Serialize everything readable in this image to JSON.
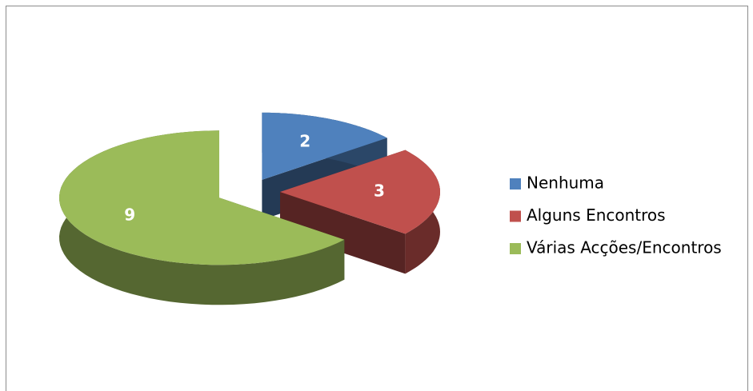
{
  "chart_data": {
    "type": "pie3d",
    "categories": [
      "Nenhuma",
      "Alguns Encontros",
      "Várias Acções/Encontros"
    ],
    "values": [
      2,
      3,
      9
    ],
    "colors": [
      "#4f81bd",
      "#c0504d",
      "#9bbb59"
    ],
    "legend": "right"
  }
}
